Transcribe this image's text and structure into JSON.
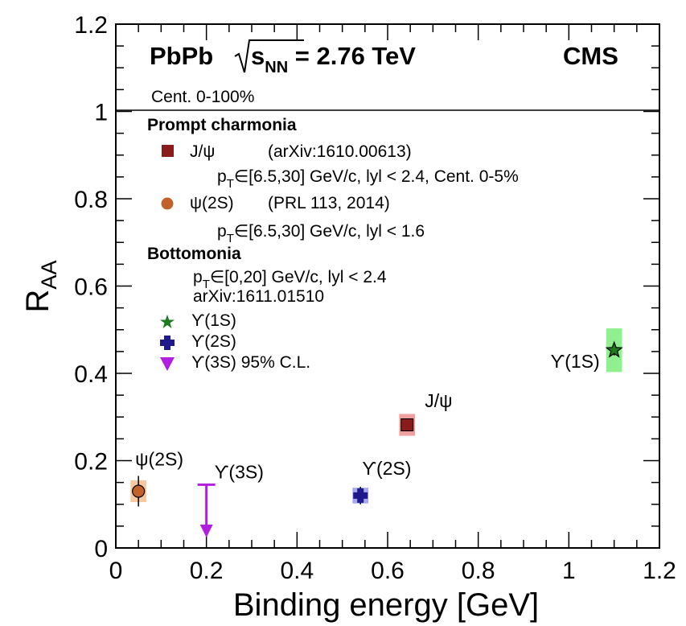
{
  "chart_data": {
    "type": "scatter",
    "title": "PbPb √sNN = 2.76 TeV",
    "experiment": "CMS",
    "centrality": "Cent. 0-100%",
    "xlabel": "Binding energy [GeV]",
    "ylabel": "R_AA",
    "xlim": [
      0,
      1.2
    ],
    "ylim": [
      0,
      1.2
    ],
    "xticks": [
      "0",
      "0.2",
      "0.4",
      "0.6",
      "0.8",
      "1",
      "1.2"
    ],
    "yticks": [
      "0",
      "0.2",
      "0.4",
      "0.6",
      "0.8",
      "1",
      "1.2"
    ],
    "reference_line_y": 1,
    "legend": {
      "prompt_header": "Prompt charmonia",
      "jpsi_label": "J/ψ",
      "jpsi_ref": "(arXiv:1610.00613)",
      "jpsi_cuts_p": "p",
      "jpsi_cuts_sub": "T",
      "jpsi_cuts_rest": "∈[6.5,30] GeV/c, lyl < 2.4, Cent. 0-5%",
      "psi2s_label": "ψ(2S)",
      "psi2s_ref": "(PRL 113, 2014)",
      "psi2s_cuts_p": "p",
      "psi2s_cuts_sub": "T",
      "psi2s_cuts_rest": "∈[6.5,30] GeV/c, lyl < 1.6",
      "bottom_header": "Bottomonia",
      "bottom_cuts_p": "p",
      "bottom_cuts_sub": "T",
      "bottom_cuts_rest": "∈[0,20] GeV/c, lyl < 2.4",
      "bottom_ref": "arXiv:1611.01510",
      "y1s_label": "ϒ(1S)",
      "y2s_label": "ϒ(2S)",
      "y3s_label": "ϒ(3S) 95% C.L."
    },
    "series": [
      {
        "name": "J/ψ",
        "marker": "square",
        "x": 0.643,
        "y": 0.282,
        "stat_err": 0.008,
        "syst_box": [
          0.035,
          0.025
        ],
        "color": "#8b1a1a",
        "box_color": "#f0a0a0",
        "annotation": "J/ψ"
      },
      {
        "name": "ψ(2S)",
        "marker": "circle",
        "x": 0.05,
        "y": 0.13,
        "stat_err": 0.035,
        "syst_box": [
          0.035,
          0.025
        ],
        "color": "#c0622a",
        "box_color": "#f6c9a2",
        "annotation": "ψ(2S)"
      },
      {
        "name": "ϒ(1S)",
        "marker": "star",
        "x": 1.1,
        "y": 0.453,
        "stat_err": 0.012,
        "syst_box": [
          0.035,
          0.05
        ],
        "color": "#1e7a1e",
        "box_color": "#8ef08e",
        "annotation": "ϒ(1S)"
      },
      {
        "name": "ϒ(2S)",
        "marker": "cross",
        "x": 0.54,
        "y": 0.12,
        "stat_err": 0.02,
        "syst_box": [
          0.035,
          0.018
        ],
        "color": "#1f1a8b",
        "box_color": "#a8a8ee",
        "annotation": "ϒ(2S)"
      },
      {
        "name": "ϒ(3S)",
        "marker": "arrow-down",
        "x": 0.2,
        "y_upper": 0.145,
        "y_arrow": 0.035,
        "color": "#b01ee0",
        "annotation": "ϒ(3S)"
      }
    ]
  }
}
